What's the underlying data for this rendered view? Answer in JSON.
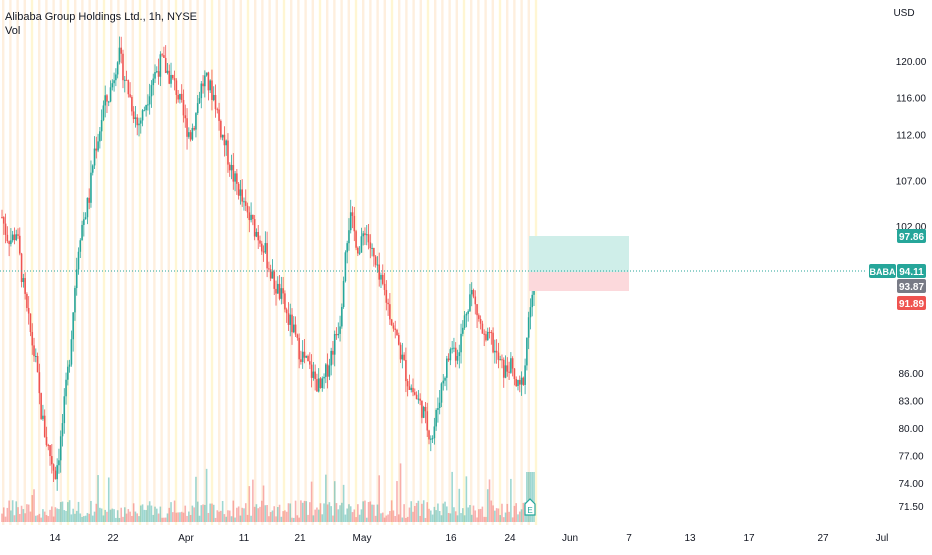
{
  "legend": {
    "symbol_line": "Alibaba Group Holdings Ltd., 1h, NYSE",
    "volume_label": "Vol"
  },
  "price_axis": {
    "currency": "USD",
    "ticks": [
      "120.00",
      "116.00",
      "112.00",
      "107.00",
      "102.00",
      "86.00",
      "83.00",
      "80.00",
      "77.00",
      "74.00",
      "71.50"
    ]
  },
  "time_axis": {
    "ticks": [
      "14",
      "22",
      "Apr",
      "11",
      "21",
      "May",
      "16",
      "24",
      "Jun",
      "7",
      "13",
      "17",
      "27",
      "Jul"
    ]
  },
  "position_tool": {
    "target_label": "97.86",
    "stop_label": "91.89",
    "entry_label": "93.87"
  },
  "last_price": {
    "symbol": "BABA",
    "value": "94.11"
  },
  "colors": {
    "up": "#26a69a",
    "down": "#ef5350",
    "profit_zone": "#cfeee9",
    "loss_zone": "#fcd9dc",
    "session_band": "#fde9d3",
    "last_price_line": "#26a69a",
    "axis_text": "#131722"
  },
  "chart_data": {
    "type": "candlestick",
    "title": "Alibaba Group Holdings Ltd., 1h, NYSE",
    "x_axis_labels": [
      "14",
      "22",
      "Apr",
      "11",
      "21",
      "May",
      "16",
      "24",
      "Jun",
      "7",
      "13",
      "17",
      "27",
      "Jul"
    ],
    "y_axis_labels": [
      "120.00",
      "116.00",
      "112.00",
      "107.00",
      "102.00",
      "86.00",
      "83.00",
      "80.00",
      "77.00",
      "74.00",
      "71.50"
    ],
    "close_path": [
      103,
      101,
      100.5,
      101.5,
      97,
      93,
      90,
      87,
      82,
      79,
      77,
      75,
      78,
      83,
      88,
      95,
      101,
      103,
      105,
      110,
      112,
      115,
      116,
      118,
      121,
      119,
      117,
      115,
      113,
      114,
      116,
      118,
      119,
      120,
      119,
      118,
      117,
      115,
      113,
      112,
      114,
      117,
      118,
      117,
      116,
      113,
      111,
      109,
      107,
      106,
      104,
      103,
      102,
      101,
      100,
      98,
      96,
      95,
      94,
      92,
      91,
      89,
      88,
      87,
      86,
      85,
      84,
      86,
      88,
      90,
      92,
      100,
      103,
      101,
      99,
      102,
      100,
      98,
      96,
      95,
      93,
      91,
      89,
      87,
      85,
      84,
      83,
      82,
      80,
      79,
      82,
      85,
      87,
      89,
      88,
      90,
      93,
      95,
      93,
      91,
      89,
      90,
      88,
      87,
      86,
      87,
      85,
      84,
      86,
      93,
      94.11
    ],
    "last_price": 94.11
  }
}
